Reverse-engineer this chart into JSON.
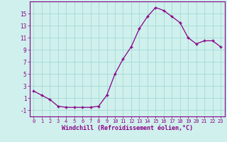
{
  "hours": [
    0,
    1,
    2,
    3,
    4,
    5,
    6,
    7,
    8,
    9,
    10,
    11,
    12,
    13,
    14,
    15,
    16,
    17,
    18,
    19,
    20,
    21,
    22,
    23
  ],
  "values": [
    2.2,
    1.5,
    0.8,
    -0.3,
    -0.5,
    -0.5,
    -0.5,
    -0.5,
    -0.3,
    1.5,
    5.0,
    7.5,
    9.5,
    12.5,
    14.5,
    16.0,
    15.5,
    14.5,
    13.5,
    11.0,
    10.0,
    10.5,
    10.5,
    9.5
  ],
  "xlabel": "Windchill (Refroidissement éolien,°C)",
  "ylim": [
    -2,
    17
  ],
  "xlim": [
    -0.5,
    23.5
  ],
  "yticks": [
    -1,
    1,
    3,
    5,
    7,
    9,
    11,
    13,
    15
  ],
  "xticks": [
    0,
    1,
    2,
    3,
    4,
    5,
    6,
    7,
    8,
    9,
    10,
    11,
    12,
    13,
    14,
    15,
    16,
    17,
    18,
    19,
    20,
    21,
    22,
    23
  ],
  "line_color": "#880088",
  "marker": "+",
  "markersize": 3.5,
  "linewidth": 0.9,
  "bg_color": "#cff0ec",
  "grid_color": "#aaddda",
  "tick_color": "#880088",
  "label_color": "#880088"
}
